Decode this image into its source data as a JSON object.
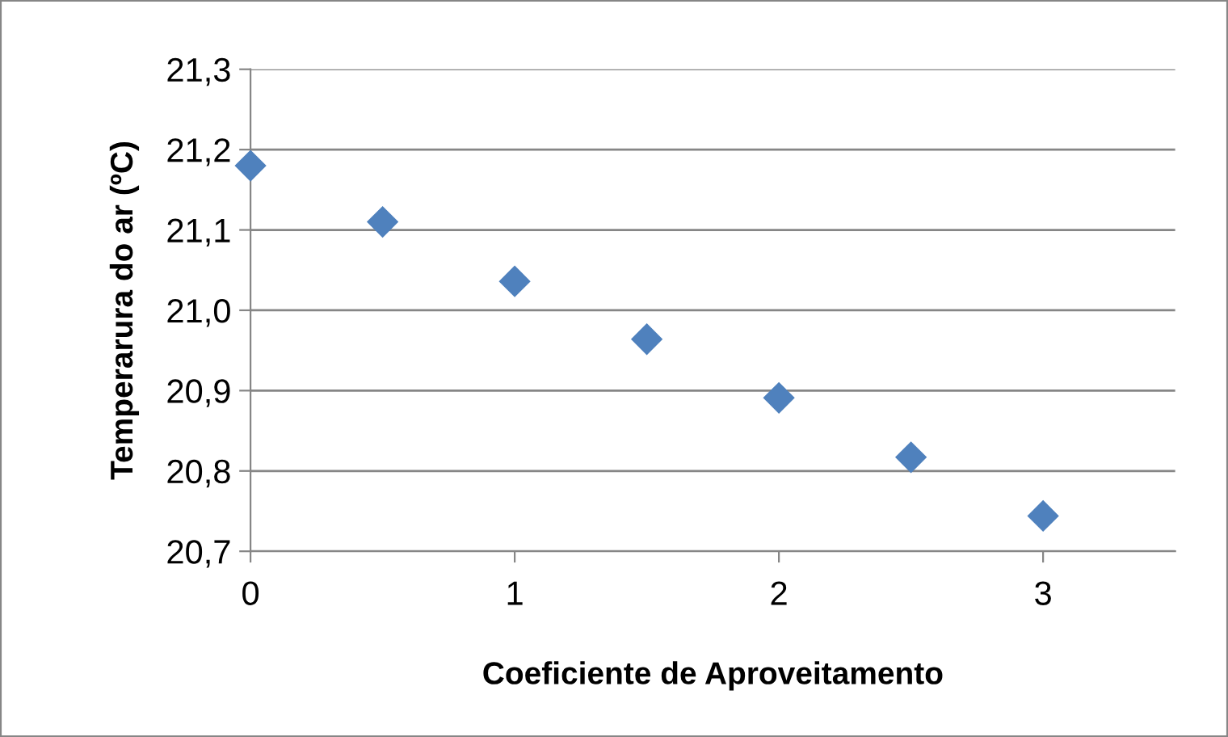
{
  "chart_data": {
    "type": "scatter",
    "xlabel": "Coeficiente de Aproveitamento",
    "ylabel": "Temperarura do ar (ºC)",
    "x": [
      0,
      0.5,
      1,
      1.5,
      2,
      2.5,
      3
    ],
    "series": [
      {
        "color": "#4f81bd",
        "values": [
          21.18,
          21.11,
          21.036,
          20.964,
          20.891,
          20.817,
          20.744
        ]
      }
    ],
    "marker": "diamond",
    "grid": "y",
    "xlim": [
      0,
      3.5
    ],
    "xticks": [
      0,
      1,
      2,
      3
    ],
    "ylim": [
      20.7,
      21.3
    ],
    "yticks": [
      {
        "value": 20.7,
        "label": "20,7"
      },
      {
        "value": 20.8,
        "label": "20,8"
      },
      {
        "value": 20.9,
        "label": "20,9"
      },
      {
        "value": 21.0,
        "label": "21,0"
      },
      {
        "value": 21.1,
        "label": "21,1"
      },
      {
        "value": 21.2,
        "label": "21,2"
      },
      {
        "value": 21.3,
        "label": "21,3"
      }
    ]
  }
}
